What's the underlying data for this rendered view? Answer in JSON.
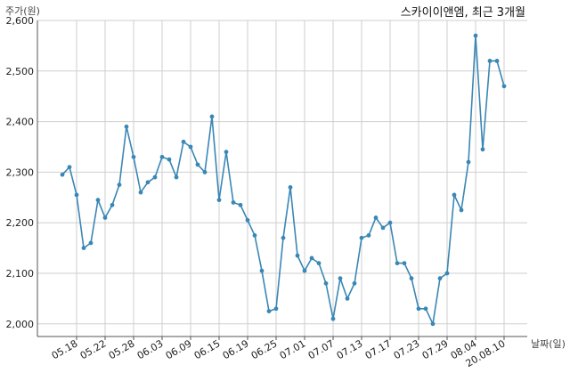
{
  "chart_data": {
    "type": "line",
    "title": "스카이이앤엠, 최근 3개월",
    "ylabel": "주가(원)",
    "xlabel": "날짜(일)",
    "ylim": [
      1975,
      2600
    ],
    "yticks": [
      2000,
      2100,
      2200,
      2300,
      2400,
      2500,
      2600
    ],
    "ytick_labels": [
      "2,000",
      "2,100",
      "2,200",
      "2,300",
      "2,400",
      "2,500",
      "2,600"
    ],
    "xtick_labels": [
      "05.18",
      "05.22",
      "05.28",
      "06.03",
      "06.09",
      "06.15",
      "06.19",
      "06.25",
      "07.01",
      "07.07",
      "07.13",
      "07.17",
      "07.23",
      "07.29",
      "08.04",
      "20.08.10"
    ],
    "xtick_positions": [
      2,
      6,
      10,
      14,
      18,
      22,
      26,
      30,
      34,
      38,
      42,
      46,
      50,
      54,
      58,
      62
    ],
    "grid": true,
    "line_color": "#3a87b5",
    "series": [
      {
        "values": [
          2295,
          2310,
          2255,
          2150,
          2160,
          2245,
          2210,
          2235,
          2275,
          2390,
          2330,
          2260,
          2280,
          2290,
          2330,
          2325,
          2290,
          2360,
          2350,
          2315,
          2300,
          2410,
          2245,
          2340,
          2240,
          2235,
          2205,
          2175,
          2105,
          2025,
          2030,
          2170,
          2270,
          2135,
          2105,
          2130,
          2120,
          2080,
          2010,
          2090,
          2050,
          2080,
          2170,
          2175,
          2210,
          2190,
          2200,
          2120,
          2120,
          2090,
          2030,
          2030,
          2000,
          2090,
          2100,
          2255,
          2225,
          2320,
          2570,
          2345,
          2520,
          2520,
          2470
        ]
      }
    ]
  }
}
